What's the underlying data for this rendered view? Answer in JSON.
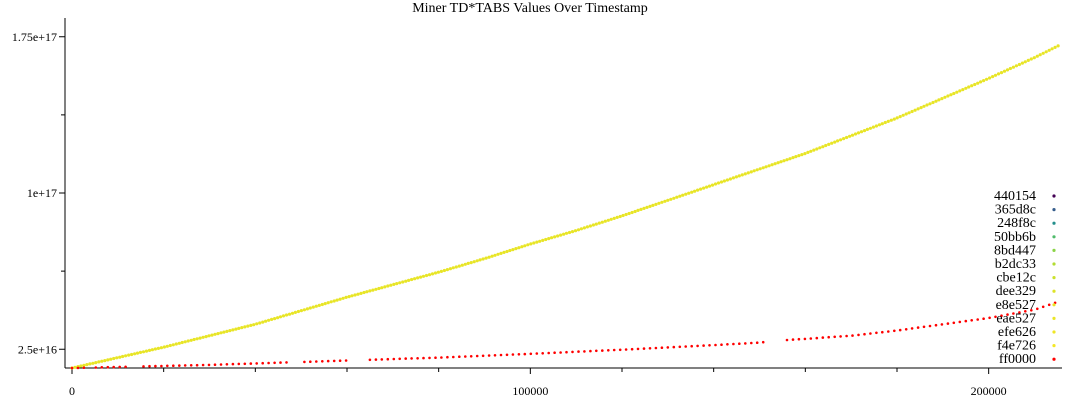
{
  "chart_data": {
    "type": "scatter",
    "title": "Miner TD*TABS Values Over Timestamp",
    "xlabel": "",
    "ylabel": "",
    "xlim": [
      0,
      216000
    ],
    "ylim": [
      16000000000000000,
      184000000000000000
    ],
    "x_ticks": [
      {
        "value": 0,
        "label": "0"
      },
      {
        "value": 100000,
        "label": "100000"
      },
      {
        "value": 200000,
        "label": "200000"
      }
    ],
    "x_minor_ticks": [
      20000,
      40000,
      60000,
      80000,
      120000,
      140000,
      160000,
      180000
    ],
    "y_ticks": [
      {
        "value": 25000000000000000,
        "label": "2.5e+16"
      },
      {
        "value": 100000000000000000,
        "label": "1e+17"
      },
      {
        "value": 175000000000000000,
        "label": "1.75e+17"
      }
    ],
    "y_minor_ticks": [
      62500000000000000,
      137500000000000000
    ],
    "grid": false,
    "legend_position": "right",
    "series": [
      {
        "name": "440154",
        "color": "#440154",
        "x": [],
        "y": []
      },
      {
        "name": "365d8c",
        "color": "#365d8c",
        "x": [],
        "y": []
      },
      {
        "name": "248f8c",
        "color": "#248f8c",
        "x": [],
        "y": []
      },
      {
        "name": "50bb6b",
        "color": "#50bb6b",
        "x": [],
        "y": []
      },
      {
        "name": "8bd447",
        "color": "#8bd447",
        "x": [],
        "y": []
      },
      {
        "name": "b2dc33",
        "color": "#b2dc33",
        "x": [],
        "y": []
      },
      {
        "name": "cbe12c",
        "color": "#cbe12c",
        "x": [],
        "y": []
      },
      {
        "name": "dee329",
        "color": "#dee329",
        "x": [],
        "y": []
      },
      {
        "name": "e8e527",
        "color": "#e8e527",
        "x": [
          0,
          10000,
          20000,
          30000,
          40000,
          50000,
          60000,
          70000,
          80000,
          90000,
          100000,
          110000,
          120000,
          130000,
          140000,
          150000,
          160000,
          170000,
          180000,
          190000,
          200000,
          210000,
          215500
        ],
        "y": [
          16000000000000000,
          21000000000000000,
          26000000000000000,
          31500000000000000,
          37000000000000000,
          43500000000000000,
          50000000000000000,
          56000000000000000,
          62000000000000000,
          68500000000000000,
          75500000000000000,
          82000000000000000,
          89000000000000000,
          96500000000000000,
          104000000000000000,
          111500000000000000,
          119000000000000000,
          127500000000000000,
          136000000000000000,
          145500000000000000,
          155000000000000000,
          165000000000000000,
          171000000000000000
        ]
      },
      {
        "name": "eae527",
        "color": "#eae527",
        "x": [],
        "y": []
      },
      {
        "name": "efe626",
        "color": "#efe626",
        "x": [],
        "y": []
      },
      {
        "name": "f4e726",
        "color": "#f4e726",
        "x": [],
        "y": []
      },
      {
        "name": "ff0000",
        "color": "#ff0000",
        "x": [
          0,
          10000,
          20000,
          30000,
          40000,
          50000,
          60000,
          70000,
          80000,
          90000,
          100000,
          110000,
          120000,
          130000,
          140000,
          150000,
          155000,
          160000,
          170000,
          180000,
          190000,
          200000,
          210000,
          215500
        ],
        "y": [
          16000000000000000,
          16500000000000000,
          17000000000000000,
          17500000000000000,
          18200000000000000,
          18900000000000000,
          19600000000000000,
          20300000000000000,
          21000000000000000,
          21900000000000000,
          22800000000000000,
          23800000000000000,
          24800000000000000,
          25900000000000000,
          27000000000000000,
          28200000000000000,
          29300000000000000,
          30000000000000000,
          31500000000000000,
          34000000000000000,
          37000000000000000,
          40000000000000000,
          44000000000000000,
          48000000000000000
        ]
      }
    ]
  }
}
